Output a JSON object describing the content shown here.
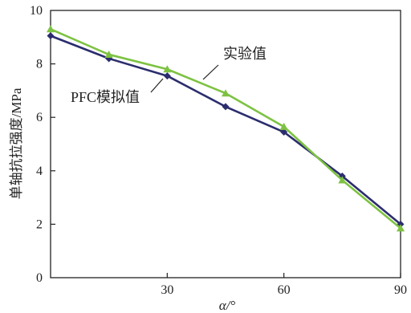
{
  "chart_data": {
    "type": "line",
    "xlabel": "α/°",
    "ylabel": "单轴抗拉强度/MPa",
    "xlim": [
      0,
      90
    ],
    "ylim": [
      0,
      10
    ],
    "x_ticks": [
      30,
      60,
      90
    ],
    "y_ticks": [
      0,
      2,
      4,
      6,
      8,
      10
    ],
    "grid": false,
    "legend": "none",
    "series": [
      {
        "name": "PFC模拟值",
        "color": "#2b2d6e",
        "marker": "diamond",
        "x": [
          0,
          15,
          30,
          45,
          60,
          75,
          90
        ],
        "values": [
          9.05,
          8.2,
          7.55,
          6.4,
          5.45,
          3.8,
          2.0
        ]
      },
      {
        "name": "实验值",
        "color": "#7dc242",
        "marker": "triangle",
        "x": [
          0,
          15,
          30,
          45,
          60,
          75,
          90
        ],
        "values": [
          9.3,
          8.35,
          7.8,
          6.9,
          5.65,
          3.65,
          1.85
        ]
      }
    ]
  }
}
